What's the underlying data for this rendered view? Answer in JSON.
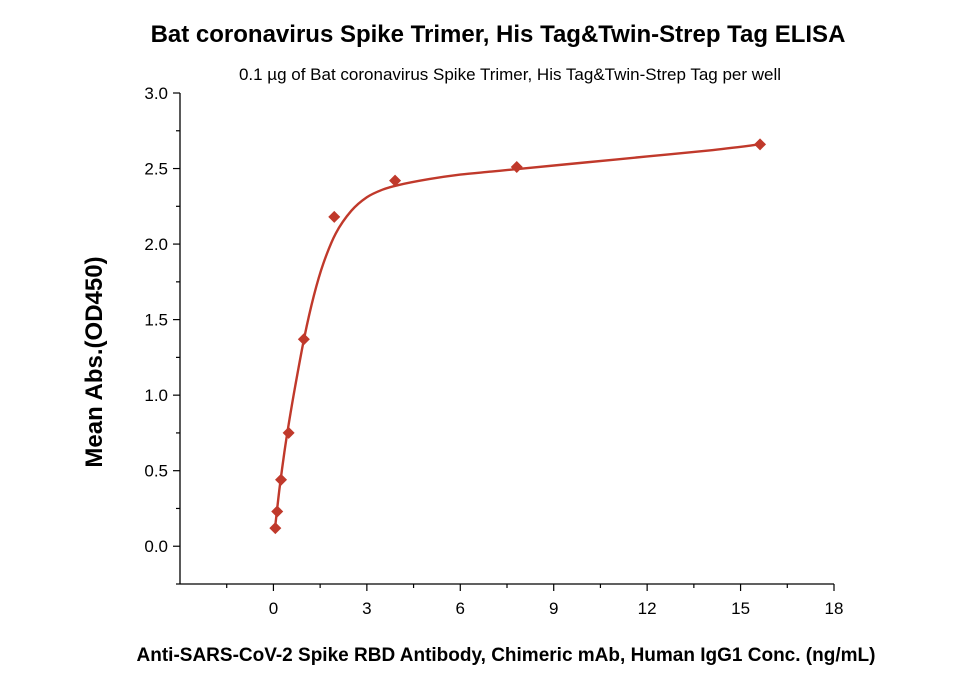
{
  "chart_data": {
    "type": "scatter",
    "title": "Bat coronavirus Spike Trimer, His Tag&Twin-Strep Tag ELISA",
    "subtitle": "0.1 µg of Bat coronavirus Spike Trimer, His Tag&Twin-Strep Tag per well",
    "xlabel": "Anti-SARS-CoV-2 Spike RBD Antibody, Chimeric mAb, Human IgG1 Conc. (ng/mL)",
    "ylabel": "Mean Abs.(OD450)",
    "xlim": [
      -3,
      18
    ],
    "ylim": [
      -0.25,
      3.0
    ],
    "xticks": [
      0,
      3,
      6,
      9,
      12,
      15,
      18
    ],
    "xtick_labels": [
      "0",
      "3",
      "6",
      "9",
      "12",
      "15",
      "18"
    ],
    "yticks": [
      0.0,
      0.5,
      1.0,
      1.5,
      2.0,
      2.5,
      3.0
    ],
    "ytick_labels": [
      "0.0",
      "0.5",
      "1.0",
      "1.5",
      "2.0",
      "2.5",
      "3.0"
    ],
    "grid": false,
    "color": "#c0392b",
    "points": {
      "x": [
        0.061,
        0.122,
        0.244,
        0.488,
        0.977,
        1.953,
        3.906,
        7.813,
        15.625
      ],
      "y": [
        0.12,
        0.23,
        0.44,
        0.75,
        1.37,
        2.18,
        2.42,
        2.51,
        2.66
      ]
    },
    "fit": {
      "x": [
        0.05,
        0.1,
        0.2,
        0.35,
        0.5,
        0.7,
        1.0,
        1.3,
        1.6,
        2.0,
        2.5,
        3.0,
        3.5,
        4.0,
        5.0,
        6.0,
        7.0,
        8.0,
        10.0,
        12.0,
        14.0,
        15.625
      ],
      "y": [
        0.12,
        0.21,
        0.39,
        0.62,
        0.82,
        1.06,
        1.39,
        1.66,
        1.87,
        2.07,
        2.22,
        2.31,
        2.36,
        2.39,
        2.43,
        2.46,
        2.48,
        2.5,
        2.54,
        2.58,
        2.62,
        2.66
      ]
    }
  }
}
